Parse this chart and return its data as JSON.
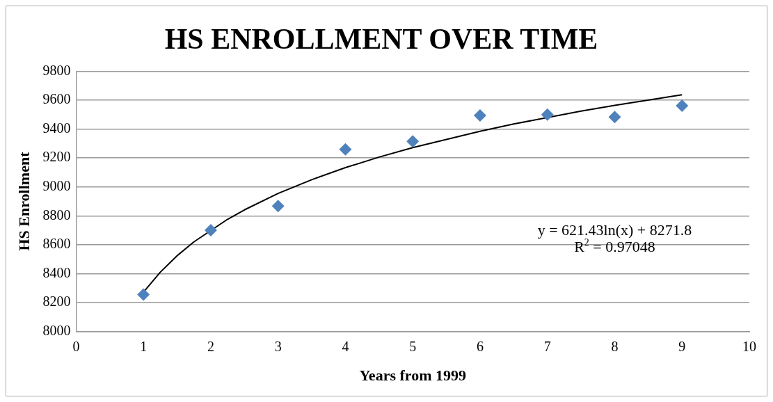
{
  "chart_data": {
    "type": "scatter",
    "title": "HS ENROLLMENT OVER TIME",
    "xlabel": "Years from 1999",
    "ylabel": "HS Enrollment",
    "x": [
      1,
      2,
      3,
      4,
      5,
      6,
      7,
      8,
      9
    ],
    "series": [
      {
        "color": "#4f81bd",
        "marker": "diamond",
        "values": [
          8255,
          8700,
          8867,
          9260,
          9315,
          9494,
          9500,
          9483,
          9561
        ]
      },
      {
        "type": "line",
        "color": "#000000",
        "marker": "none",
        "line_style": "solid",
        "x": [
          1,
          1.25,
          1.5,
          1.75,
          2.25,
          2.5,
          3,
          3.5,
          4,
          4.5,
          5,
          6,
          6.5,
          7.5,
          8,
          9
        ],
        "values": [
          8272,
          8410,
          8524,
          8620,
          8776,
          8841,
          8955,
          9050,
          9133,
          9206,
          9272,
          9385,
          9435,
          9524,
          9564,
          9637
        ]
      }
    ],
    "annotations": [
      "y = 621.43ln(x) + 8271.8",
      "R$^{2}$ = 0.97048"
    ],
    "xlim": [
      0,
      10
    ],
    "xticks": [
      0,
      1,
      2,
      3,
      4,
      5,
      6,
      7,
      8,
      9,
      10
    ],
    "ylim": [
      8000,
      9800
    ],
    "yticks": [
      8000,
      8200,
      8400,
      8600,
      8800,
      9000,
      9200,
      9400,
      9600,
      9800
    ],
    "grid": "y",
    "legend": false
  }
}
